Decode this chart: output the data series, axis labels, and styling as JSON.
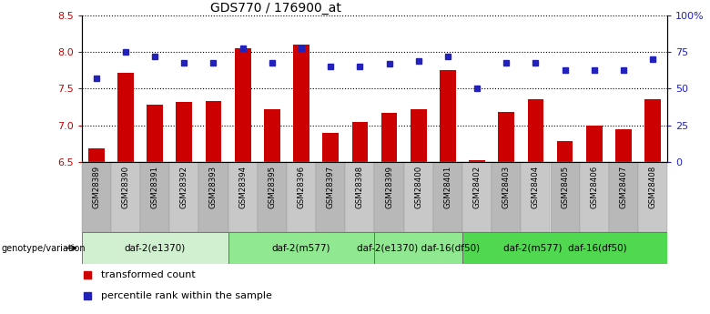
{
  "title": "GDS770 / 176900_at",
  "samples": [
    "GSM28389",
    "GSM28390",
    "GSM28391",
    "GSM28392",
    "GSM28393",
    "GSM28394",
    "GSM28395",
    "GSM28396",
    "GSM28397",
    "GSM28398",
    "GSM28399",
    "GSM28400",
    "GSM28401",
    "GSM28402",
    "GSM28403",
    "GSM28404",
    "GSM28405",
    "GSM28406",
    "GSM28407",
    "GSM28408"
  ],
  "transformed_count": [
    6.68,
    7.72,
    7.28,
    7.32,
    7.33,
    8.05,
    7.22,
    8.1,
    6.9,
    7.04,
    7.17,
    7.22,
    7.75,
    6.52,
    7.18,
    7.35,
    6.78,
    7.0,
    6.95,
    7.35
  ],
  "percentile_rank": [
    57,
    75,
    72,
    68,
    68,
    78,
    68,
    78,
    65,
    65,
    67,
    69,
    72,
    50,
    68,
    68,
    63,
    63,
    63,
    70
  ],
  "ylim_left": [
    6.5,
    8.5
  ],
  "ylim_right": [
    0,
    100
  ],
  "yticks_left": [
    6.5,
    7.0,
    7.5,
    8.0,
    8.5
  ],
  "yticks_right_vals": [
    0,
    25,
    50,
    75,
    100
  ],
  "ytick_right_labels": [
    "0",
    "25",
    "50",
    "75",
    "100%"
  ],
  "groups": [
    {
      "label": "daf-2(e1370)",
      "start": 0,
      "end": 4,
      "color": "#d0f0d0"
    },
    {
      "label": "daf-2(m577)",
      "start": 5,
      "end": 9,
      "color": "#90e890"
    },
    {
      "label": "daf-2(e1370) daf-16(df50)",
      "start": 10,
      "end": 12,
      "color": "#90e890"
    },
    {
      "label": "daf-2(m577)  daf-16(df50)",
      "start": 13,
      "end": 19,
      "color": "#50d850"
    }
  ],
  "bar_color": "#cc0000",
  "dot_color": "#2222bb",
  "bar_width": 0.55,
  "legend_items": [
    {
      "label": "transformed count",
      "color": "#cc0000"
    },
    {
      "label": "percentile rank within the sample",
      "color": "#2222bb"
    }
  ],
  "genotype_label": "genotype/variation",
  "sample_bg_even": "#b8b8b8",
  "sample_bg_odd": "#c8c8c8"
}
